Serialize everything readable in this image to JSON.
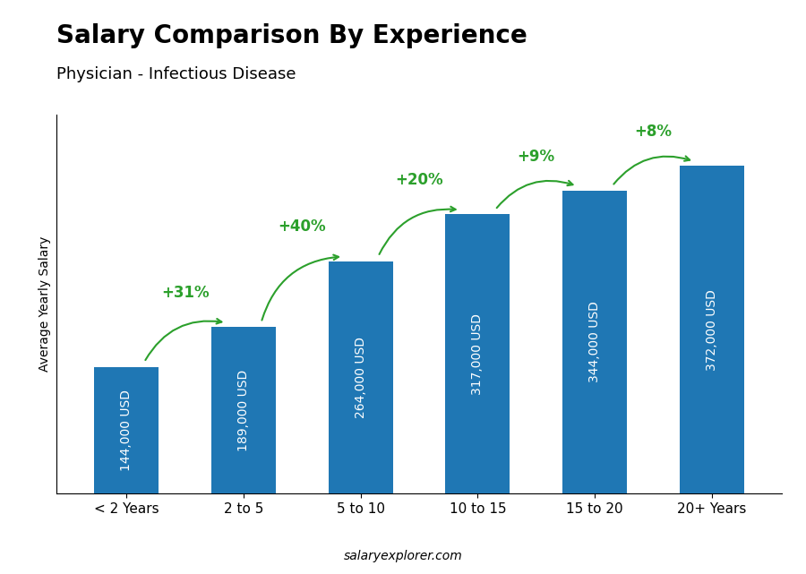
{
  "chart_data": {
    "type": "bar",
    "title": "Salary Comparison By Experience",
    "subtitle": "Physician - Infectious Disease",
    "ylabel": "Average Yearly Salary",
    "footer": "salaryexplorer.com",
    "categories": [
      "< 2 Years",
      "2 to 5",
      "5 to 10",
      "10 to 15",
      "15 to 20",
      "20+ Years"
    ],
    "values": [
      144000,
      189000,
      264000,
      317000,
      344000,
      372000
    ],
    "value_labels": [
      "144,000 USD",
      "189,000 USD",
      "264,000 USD",
      "317,000 USD",
      "344,000 USD",
      "372,000 USD"
    ],
    "data_labels": true,
    "annotations": [
      "+31%",
      "+40%",
      "+20%",
      "+9%",
      "+8%"
    ],
    "ylim": [
      0,
      430000
    ],
    "tick_labels": "x",
    "grid": false
  }
}
